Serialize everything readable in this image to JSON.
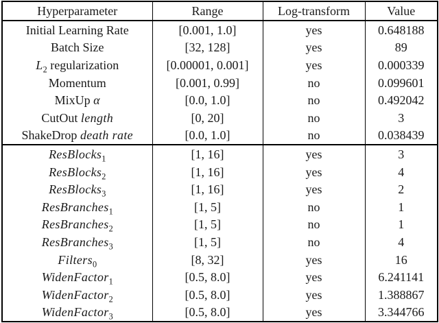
{
  "page": {
    "background": "#ffffff",
    "text_color": "#1a1a1a",
    "border_color": "#000000"
  },
  "table": {
    "headers": [
      "Hyperparameter",
      "Range",
      "Log-transform",
      "Value"
    ],
    "sections": [
      {
        "label": "training-hyperparameters",
        "rows": [
          {
            "name_parts": [
              {
                "text": "Initial Learning Rate"
              }
            ],
            "range": "[0.001, 1.0]",
            "log_transform": "yes",
            "value": "0.648188"
          },
          {
            "name_parts": [
              {
                "text": "Batch Size"
              }
            ],
            "range": "[32, 128]",
            "log_transform": "yes",
            "value": "89"
          },
          {
            "name_parts": [
              {
                "text": "L",
                "italic": true
              },
              {
                "text": "2",
                "sub": true
              },
              {
                "text": " regularization"
              }
            ],
            "range": "[0.00001, 0.001]",
            "log_transform": "yes",
            "value": "0.000339"
          },
          {
            "name_parts": [
              {
                "text": "Momentum"
              }
            ],
            "range": "[0.001, 0.99]",
            "log_transform": "no",
            "value": "0.099601"
          },
          {
            "name_parts": [
              {
                "text": "MixUp "
              },
              {
                "text": "α",
                "italic": true
              }
            ],
            "range": "[0.0, 1.0]",
            "log_transform": "no",
            "value": "0.492042"
          },
          {
            "name_parts": [
              {
                "text": "CutOut "
              },
              {
                "text": "length",
                "italic": true
              }
            ],
            "range": "[0, 20]",
            "log_transform": "no",
            "value": "3"
          },
          {
            "name_parts": [
              {
                "text": "ShakeDrop "
              },
              {
                "text": "death rate",
                "italic": true
              }
            ],
            "range": "[0.0, 1.0]",
            "log_transform": "no",
            "value": "0.038439"
          }
        ]
      },
      {
        "label": "architecture-hyperparameters",
        "rows": [
          {
            "name_parts": [
              {
                "text": "ResBlocks",
                "italic": true
              },
              {
                "text": "1",
                "sub": true
              }
            ],
            "range": "[1, 16]",
            "log_transform": "yes",
            "value": "3"
          },
          {
            "name_parts": [
              {
                "text": "ResBlocks",
                "italic": true
              },
              {
                "text": "2",
                "sub": true
              }
            ],
            "range": "[1, 16]",
            "log_transform": "yes",
            "value": "4"
          },
          {
            "name_parts": [
              {
                "text": "ResBlocks",
                "italic": true
              },
              {
                "text": "3",
                "sub": true
              }
            ],
            "range": "[1, 16]",
            "log_transform": "yes",
            "value": "2"
          },
          {
            "name_parts": [
              {
                "text": "ResBranches",
                "italic": true
              },
              {
                "text": "1",
                "sub": true
              }
            ],
            "range": "[1, 5]",
            "log_transform": "no",
            "value": "1"
          },
          {
            "name_parts": [
              {
                "text": "ResBranches",
                "italic": true
              },
              {
                "text": "2",
                "sub": true
              }
            ],
            "range": "[1, 5]",
            "log_transform": "no",
            "value": "1"
          },
          {
            "name_parts": [
              {
                "text": "ResBranches",
                "italic": true
              },
              {
                "text": "3",
                "sub": true
              }
            ],
            "range": "[1, 5]",
            "log_transform": "no",
            "value": "4"
          },
          {
            "name_parts": [
              {
                "text": "Filters",
                "italic": true
              },
              {
                "text": "0",
                "sub": true
              }
            ],
            "range": "[8, 32]",
            "log_transform": "yes",
            "value": "16"
          },
          {
            "name_parts": [
              {
                "text": "WidenFactor",
                "italic": true
              },
              {
                "text": "1",
                "sub": true
              }
            ],
            "range": "[0.5, 8.0]",
            "log_transform": "yes",
            "value": "6.241141"
          },
          {
            "name_parts": [
              {
                "text": "WidenFactor",
                "italic": true
              },
              {
                "text": "2",
                "sub": true
              }
            ],
            "range": "[0.5, 8.0]",
            "log_transform": "yes",
            "value": "1.388867"
          },
          {
            "name_parts": [
              {
                "text": "WidenFactor",
                "italic": true
              },
              {
                "text": "3",
                "sub": true
              }
            ],
            "range": "[0.5, 8.0]",
            "log_transform": "yes",
            "value": "3.344766"
          }
        ]
      }
    ]
  }
}
